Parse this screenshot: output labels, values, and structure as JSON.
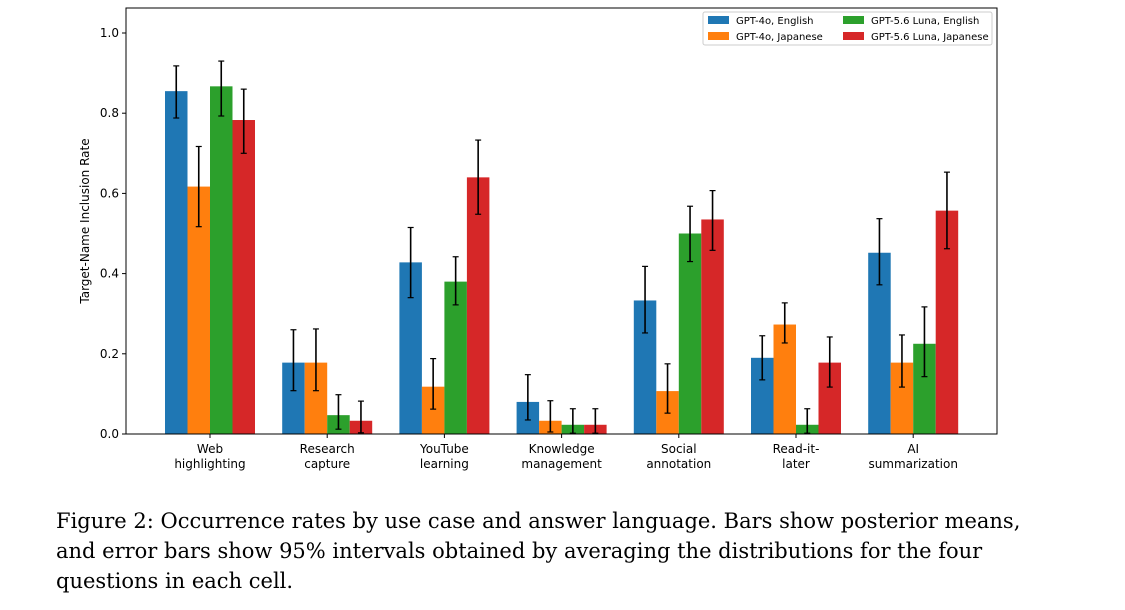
{
  "chart_data": {
    "type": "bar",
    "ylabel": "Target-Name Inclusion Rate",
    "xlabel": "",
    "ylim": [
      0,
      1.0
    ],
    "yticks": [
      "0.0",
      "0.2",
      "0.4",
      "0.6",
      "0.8",
      "1.0"
    ],
    "grid": false,
    "legend_position": "top-right",
    "categories": [
      [
        "Web",
        "highlighting"
      ],
      [
        "Research",
        "capture"
      ],
      [
        "YouTube",
        "learning"
      ],
      [
        "Knowledge",
        "management"
      ],
      [
        "Social",
        "annotation"
      ],
      [
        "Read-it-",
        "later"
      ],
      [
        "AI",
        "summarization"
      ]
    ],
    "series": [
      {
        "name": "GPT-4o, English",
        "color": "#1f77b4",
        "values": [
          0.855,
          0.178,
          0.428,
          0.08,
          0.333,
          0.19,
          0.452
        ],
        "err_low": [
          0.788,
          0.108,
          0.34,
          0.035,
          0.252,
          0.135,
          0.372
        ],
        "err_high": [
          0.918,
          0.26,
          0.515,
          0.148,
          0.418,
          0.245,
          0.537
        ]
      },
      {
        "name": "GPT-4o, Japanese",
        "color": "#ff7f0e",
        "values": [
          0.617,
          0.178,
          0.118,
          0.033,
          0.107,
          0.273,
          0.178
        ],
        "err_low": [
          0.517,
          0.108,
          0.062,
          0.005,
          0.052,
          0.227,
          0.117
        ],
        "err_high": [
          0.717,
          0.262,
          0.188,
          0.083,
          0.175,
          0.327,
          0.247
        ]
      },
      {
        "name": "GPT-5.6 Luna, English",
        "color": "#2ca02c",
        "values": [
          0.867,
          0.047,
          0.38,
          0.023,
          0.5,
          0.023,
          0.225
        ],
        "err_low": [
          0.793,
          0.012,
          0.322,
          0.002,
          0.43,
          0.002,
          0.143
        ],
        "err_high": [
          0.93,
          0.098,
          0.442,
          0.063,
          0.568,
          0.063,
          0.317
        ]
      },
      {
        "name": "GPT-5.6 Luna, Japanese",
        "color": "#d62728",
        "values": [
          0.783,
          0.033,
          0.64,
          0.023,
          0.535,
          0.178,
          0.557
        ],
        "err_low": [
          0.7,
          0.003,
          0.548,
          0.002,
          0.458,
          0.117,
          0.462
        ],
        "err_high": [
          0.86,
          0.082,
          0.733,
          0.063,
          0.607,
          0.242,
          0.653
        ]
      }
    ]
  },
  "caption": "Figure 2: Occurrence rates by use case and answer language. Bars show posterior means, and error bars show 95% intervals obtained by averaging the distributions for the four questions in each cell."
}
